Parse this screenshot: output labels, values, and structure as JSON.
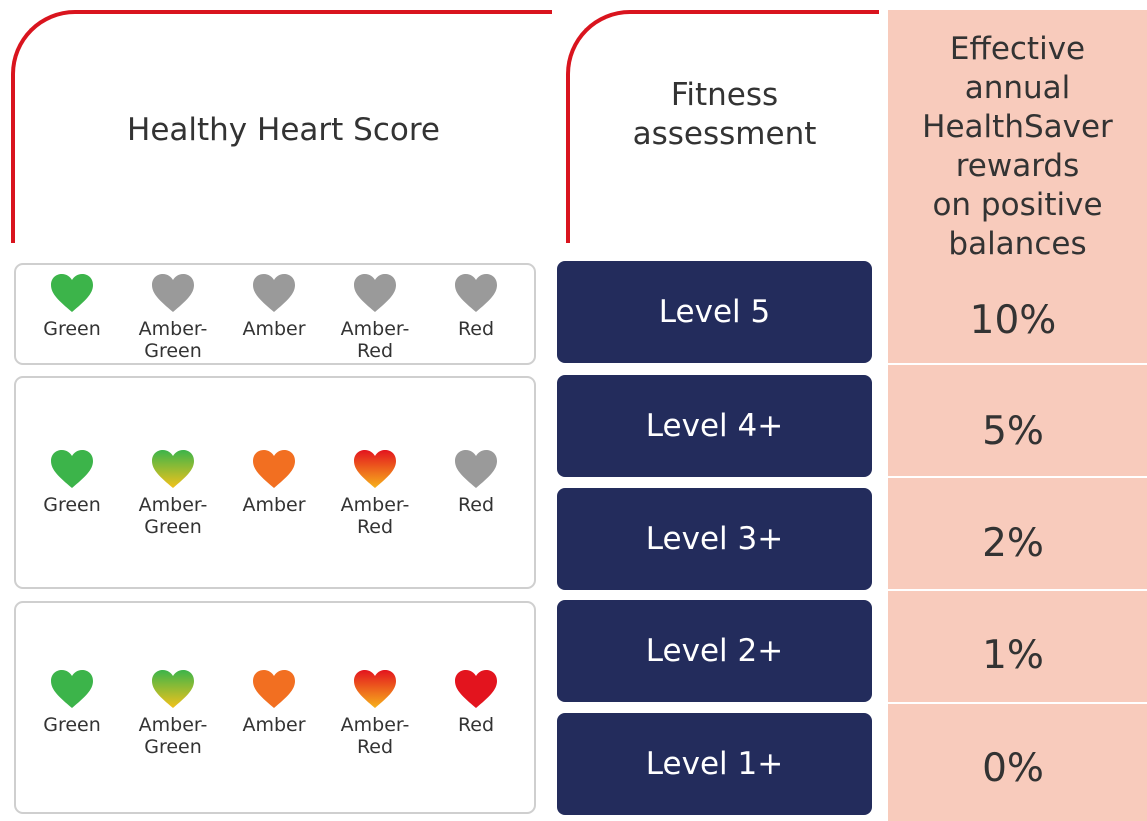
{
  "headers": {
    "score": "Healthy Heart Score",
    "fitness": "Fitness\nassessment",
    "rewards": "Effective\nannual\nHealthSaver\nrewards\non positive\nbalances"
  },
  "heart_labels": [
    "Green",
    "Amber-\nGreen",
    "Amber",
    "Amber-\nRed",
    "Red"
  ],
  "rows": [
    {
      "level": "Level 5",
      "reward": "10%",
      "hearts": [
        "green",
        "grey",
        "grey",
        "grey",
        "grey"
      ]
    },
    {
      "level": "Level 4+",
      "reward": "5%",
      "hearts": [
        "green",
        "amber-green",
        "amber",
        "amber-red",
        "grey"
      ]
    },
    {
      "level": "Level 3+",
      "reward": "2%",
      "hearts": []
    },
    {
      "level": "Level 2+",
      "reward": "1%",
      "hearts": [
        "green",
        "amber-green",
        "amber",
        "amber-red",
        "red"
      ]
    },
    {
      "level": "Level 1+",
      "reward": "0%",
      "hearts": []
    }
  ],
  "colors": {
    "accent_red": "#d9141e",
    "level_bg": "#232c5c",
    "rewards_bg": "#f8cbbc",
    "heart_green": "#3cb44a",
    "heart_grey": "#9a9a9a",
    "heart_amber": "#f26f21",
    "heart_red": "#e3141e"
  }
}
